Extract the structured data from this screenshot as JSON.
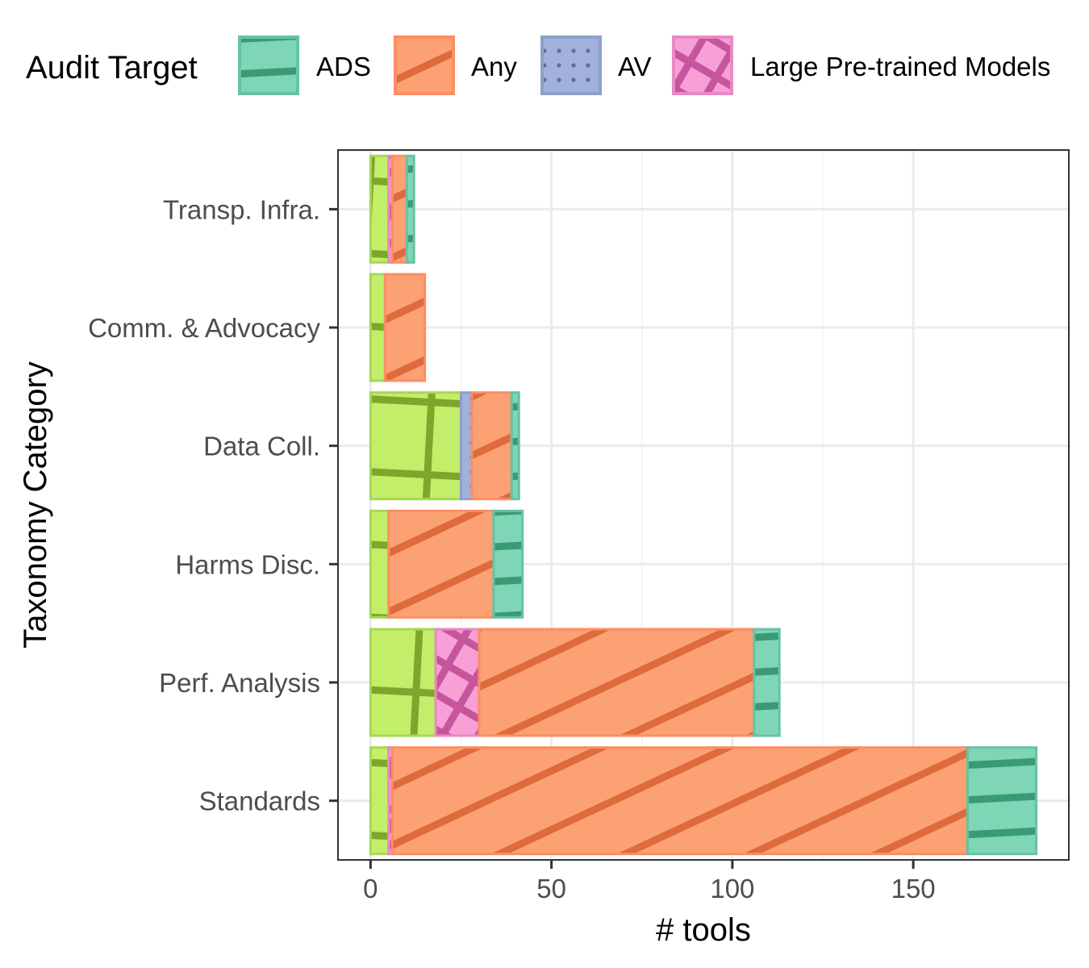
{
  "chart_data": {
    "type": "bar",
    "orientation": "horizontal",
    "stacked": true,
    "xlabel": "# tools",
    "ylabel": "Taxonomy Category",
    "xlim": [
      -9,
      193
    ],
    "x_ticks": [
      0,
      50,
      100,
      150
    ],
    "grid": true,
    "legend": {
      "title": "Audit Target",
      "position": "top",
      "entries": [
        {
          "label": "ADS",
          "color": "#7fd6b6",
          "stroke": "#66c2a5",
          "pattern": "stripe"
        },
        {
          "label": "Any",
          "color": "#fca173",
          "stroke": "#fc8d62",
          "pattern": "stripe"
        },
        {
          "label": "AV",
          "color": "#a1b1dc",
          "stroke": "#8da0cb",
          "pattern": "dots"
        },
        {
          "label": "Large Pre-trained Models",
          "color": "#f89fd6",
          "stroke": "#e78ac3",
          "pattern": "crosshatch"
        }
      ]
    },
    "categories": [
      "Standards",
      "Perf. Analysis",
      "Harms Disc.",
      "Data Coll.",
      "Comm. & Advocacy",
      "Transp. Infra."
    ],
    "series": [
      {
        "color": "#c2ee6a",
        "stroke": "#a6d854",
        "pattern": "grid",
        "values": [
          5,
          18,
          5,
          25,
          4,
          5
        ]
      },
      {
        "name": "Large Pre-trained Models",
        "color": "#f89fd6",
        "stroke": "#e78ac3",
        "pattern": "crosshatch",
        "values": [
          1,
          12,
          0,
          0,
          0,
          1
        ]
      },
      {
        "name": "AV",
        "color": "#a1b1dc",
        "stroke": "#8da0cb",
        "pattern": "dots",
        "values": [
          0,
          0,
          0,
          3,
          0,
          0
        ]
      },
      {
        "name": "Any",
        "color": "#fca173",
        "stroke": "#fc8d62",
        "pattern": "stripe",
        "values": [
          159,
          76,
          29,
          11,
          11,
          4
        ]
      },
      {
        "name": "ADS",
        "color": "#7fd6b6",
        "stroke": "#66c2a5",
        "pattern": "stripe",
        "values": [
          19,
          7,
          8,
          2,
          0,
          2
        ]
      }
    ]
  }
}
